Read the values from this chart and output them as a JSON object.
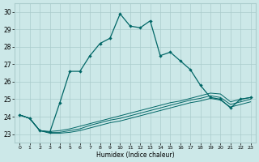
{
  "xlabel": "Humidex (Indice chaleur)",
  "background_color": "#cce8e8",
  "grid_color": "#aacccc",
  "line_color": "#006666",
  "xlim": [
    -0.5,
    23.5
  ],
  "ylim": [
    22.5,
    30.5
  ],
  "xticks": [
    0,
    1,
    2,
    3,
    4,
    5,
    6,
    7,
    8,
    9,
    10,
    11,
    12,
    13,
    14,
    15,
    16,
    17,
    18,
    19,
    20,
    21,
    22,
    23
  ],
  "yticks": [
    23,
    24,
    25,
    26,
    27,
    28,
    29,
    30
  ],
  "line1_x": [
    0,
    1,
    2,
    3,
    4,
    5,
    6,
    7,
    8,
    9,
    10,
    11,
    12,
    13,
    14,
    15,
    16,
    17,
    18,
    19,
    20,
    21,
    22,
    23
  ],
  "line1_y": [
    24.1,
    23.9,
    23.2,
    23.1,
    24.8,
    26.6,
    26.6,
    27.5,
    28.2,
    28.5,
    29.9,
    29.2,
    29.1,
    29.5,
    27.5,
    27.7,
    27.2,
    26.7,
    25.8,
    25.1,
    25.0,
    24.5,
    25.0,
    25.1
  ],
  "line2_x": [
    0,
    1,
    2,
    3,
    4,
    5,
    6,
    7,
    8,
    9,
    10,
    11,
    12,
    13,
    14,
    15,
    16,
    17,
    18,
    19,
    20,
    21,
    22,
    23
  ],
  "line2_y": [
    24.1,
    23.9,
    23.2,
    23.15,
    23.2,
    23.3,
    23.45,
    23.6,
    23.75,
    23.9,
    24.05,
    24.2,
    24.35,
    24.5,
    24.65,
    24.8,
    24.9,
    25.05,
    25.2,
    25.35,
    25.3,
    24.85,
    25.0,
    25.1
  ],
  "line3_x": [
    0,
    1,
    2,
    3,
    4,
    5,
    6,
    7,
    8,
    9,
    10,
    11,
    12,
    13,
    14,
    15,
    16,
    17,
    18,
    19,
    20,
    21,
    22,
    23
  ],
  "line3_y": [
    24.1,
    23.9,
    23.2,
    23.1,
    23.1,
    23.2,
    23.3,
    23.5,
    23.65,
    23.8,
    23.9,
    24.05,
    24.2,
    24.35,
    24.5,
    24.65,
    24.8,
    24.95,
    25.05,
    25.2,
    25.1,
    24.7,
    24.85,
    25.0
  ],
  "line4_x": [
    0,
    1,
    2,
    3,
    4,
    5,
    6,
    7,
    8,
    9,
    10,
    11,
    12,
    13,
    14,
    15,
    16,
    17,
    18,
    19,
    20,
    21,
    22,
    23
  ],
  "line4_y": [
    24.1,
    23.9,
    23.2,
    23.05,
    23.05,
    23.1,
    23.2,
    23.35,
    23.5,
    23.65,
    23.75,
    23.9,
    24.05,
    24.2,
    24.35,
    24.5,
    24.65,
    24.8,
    24.9,
    25.05,
    24.95,
    24.55,
    24.7,
    24.85
  ]
}
